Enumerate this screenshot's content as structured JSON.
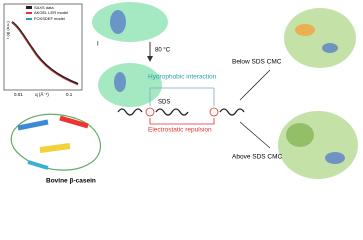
{
  "plot": {
    "legend": [
      "SAXS data",
      "AKGEL LER model",
      "FOXSDEF model"
    ],
    "y_label": "I (q) (a.u.)",
    "x_label": "q (Å⁻¹)",
    "x_ticks": [
      "0.01",
      "0.1"
    ]
  },
  "roman": "I",
  "heat_label": "80 °C",
  "center": {
    "hydrophobic": "Hydrophobic interaction",
    "sds": "SDS",
    "electrostatic": "Electrostatic repulsion"
  },
  "right": {
    "below": "Below SDS CMC",
    "above": "Above SDS CMC"
  },
  "protein_name": "Bovine β-casein"
}
